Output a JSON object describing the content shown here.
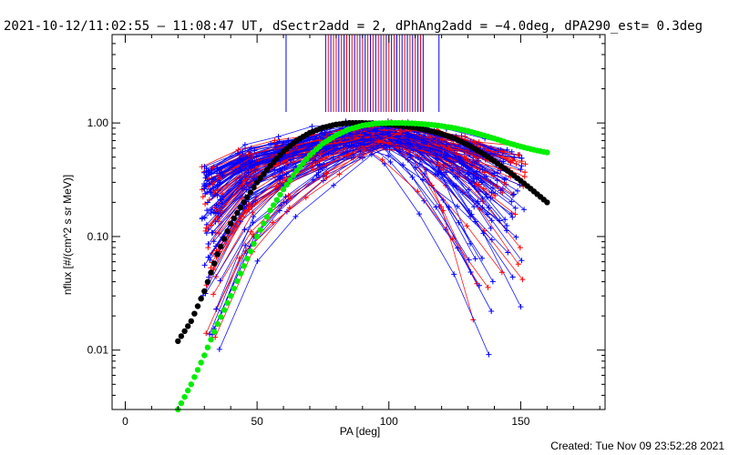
{
  "header": {
    "title": "2021-10-12/11:02:55 – 11:08:47 UT, dSectr2add = 2, dPhAng2add = −4.0deg, dPA290_est=  0.3deg"
  },
  "footer": {
    "created": "Created: Tue Nov 09 23:52:28 2021"
  },
  "chart_data": {
    "type": "line",
    "xlabel": "PA [deg]",
    "ylabel": "nflux [#/(cm^2 s sr MeV)]",
    "xlim": [
      -5,
      182
    ],
    "ylim": [
      0.003,
      6.0
    ],
    "yscale": "log",
    "xticks": [
      0,
      50,
      100,
      150
    ],
    "xtick_labels": [
      "0",
      "50",
      "100",
      "150"
    ],
    "yticks": [
      0.01,
      0.1,
      1.0
    ],
    "ytick_labels": [
      "0.01",
      "0.10",
      "1.00"
    ],
    "grid": false,
    "colors": {
      "red": "#ff0000",
      "blue": "#0000ff",
      "black": "#000000",
      "green": "#00ee00"
    },
    "red_vertical_lines_x": [
      77,
      79,
      80,
      82,
      84,
      86,
      88,
      90,
      92,
      94,
      96,
      98,
      100,
      102,
      104,
      106,
      108,
      110,
      112
    ],
    "blue_vertical_lines_x": [
      61,
      76,
      78,
      81,
      83,
      85,
      87,
      89,
      91,
      93,
      95,
      97,
      99,
      101,
      103,
      105,
      107,
      109,
      111,
      113,
      119
    ],
    "series": [
      {
        "color": "black",
        "x": [
          20,
          25,
          30,
          35,
          40,
          45,
          50,
          55,
          60,
          65,
          70,
          75,
          80,
          85,
          90,
          95,
          100,
          105,
          110,
          115,
          120,
          125,
          130,
          135,
          140,
          145,
          150,
          155,
          160
        ],
        "y": [
          0.012,
          0.018,
          0.033,
          0.07,
          0.13,
          0.2,
          0.3,
          0.42,
          0.56,
          0.7,
          0.82,
          0.91,
          0.97,
          1.0,
          1.0,
          0.99,
          0.97,
          0.94,
          0.91,
          0.86,
          0.8,
          0.73,
          0.64,
          0.55,
          0.46,
          0.38,
          0.31,
          0.25,
          0.2
        ]
      },
      {
        "color": "green",
        "x": [
          20,
          25,
          30,
          35,
          40,
          45,
          50,
          55,
          60,
          65,
          70,
          75,
          80,
          85,
          90,
          95,
          100,
          105,
          110,
          115,
          120,
          125,
          130,
          135,
          140,
          145,
          150,
          155,
          160
        ],
        "y": [
          0.003,
          0.005,
          0.009,
          0.017,
          0.03,
          0.055,
          0.1,
          0.17,
          0.26,
          0.38,
          0.52,
          0.66,
          0.78,
          0.88,
          0.95,
          0.99,
          1.0,
          1.0,
          0.99,
          0.97,
          0.94,
          0.9,
          0.85,
          0.79,
          0.73,
          0.67,
          0.62,
          0.58,
          0.55
        ]
      }
    ]
  }
}
